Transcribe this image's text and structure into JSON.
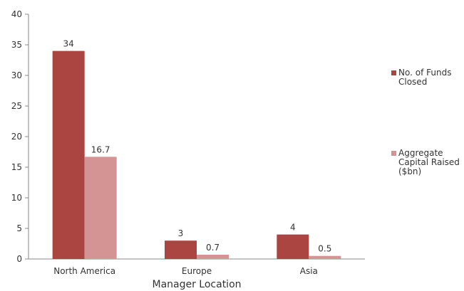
{
  "chart_data": {
    "type": "bar",
    "categories": [
      "North America",
      "Europe",
      "Asia"
    ],
    "series": [
      {
        "name": "No. of Funds Closed",
        "values": [
          34,
          3,
          4
        ],
        "labels": [
          "34",
          "3",
          "4"
        ],
        "color": "#ab4541"
      },
      {
        "name": "Aggregate Capital Raised ($bn)",
        "values": [
          16.7,
          0.7,
          0.5
        ],
        "labels": [
          "16.7",
          "0.7",
          "0.5"
        ],
        "color": "#d49494"
      }
    ],
    "xlabel": "Manager Location",
    "ylabel": "",
    "ylim": [
      0,
      40
    ],
    "yticks": [
      "0",
      "5",
      "10",
      "15",
      "20",
      "25",
      "30",
      "35",
      "40"
    ],
    "grid": false,
    "legend_position": "right"
  }
}
